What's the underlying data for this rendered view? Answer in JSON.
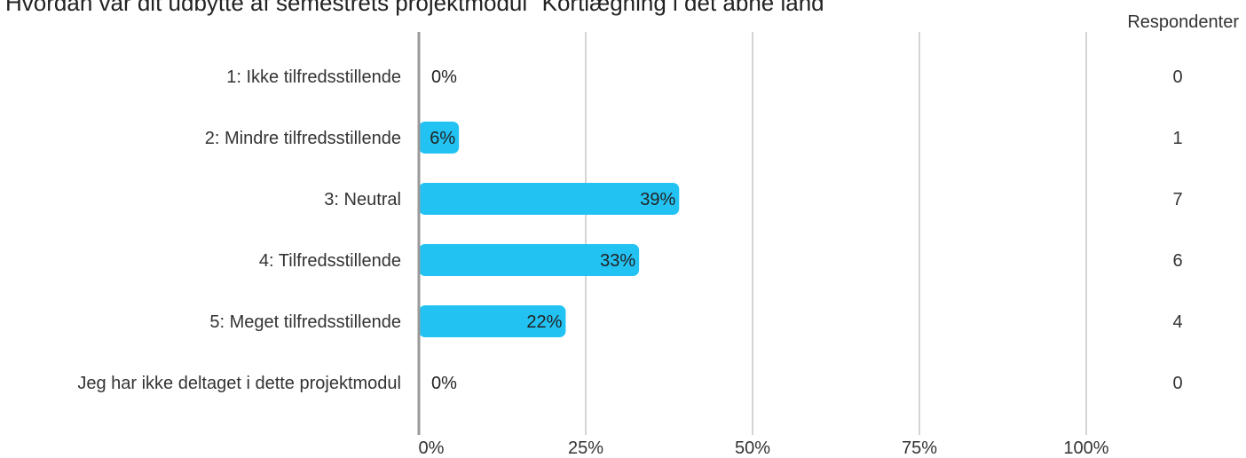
{
  "chart_data": {
    "type": "bar",
    "orientation": "horizontal",
    "title": "Hvordan var dit udbytte af semestrets projektmodul \"Kortlægning i det åbne land\"",
    "categories": [
      "1: Ikke tilfredsstillende",
      "2: Mindre tilfredsstillende",
      "3: Neutral",
      "4: Tilfredsstillende",
      "5: Meget tilfredsstillende",
      "Jeg har ikke deltaget i dette projektmodul"
    ],
    "values": [
      0,
      6,
      39,
      33,
      22,
      0
    ],
    "value_labels": [
      "0%",
      "6%",
      "39%",
      "33%",
      "22%",
      "0%"
    ],
    "respondents_header": "Respondenter",
    "respondents": [
      "0",
      "1",
      "7",
      "6",
      "4",
      "0"
    ],
    "x_ticks": [
      0,
      25,
      50,
      75,
      100
    ],
    "x_tick_labels": [
      "0%",
      "25%",
      "50%",
      "75%",
      "100%"
    ],
    "xlim": [
      0,
      100
    ],
    "grid": true,
    "bar_color": "#22c3f3",
    "grid_color": "#a8a8a8",
    "axis_color": "#9a9a9a"
  }
}
